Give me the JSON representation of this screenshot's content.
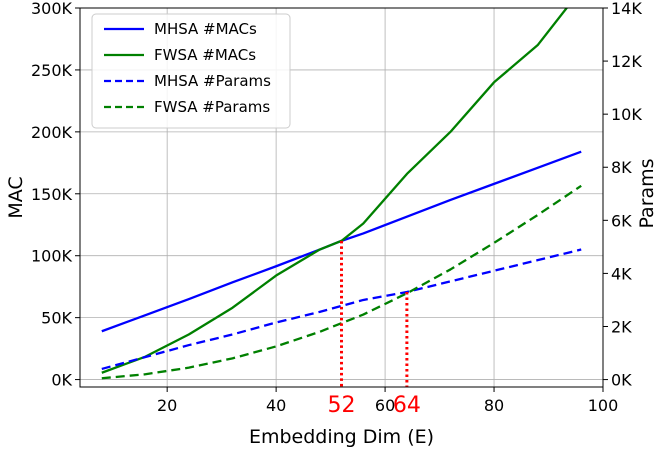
{
  "chart_data": {
    "type": "line",
    "xlabel": "Embedding Dim (E)",
    "ylabel": "MAC",
    "y2label": "Params",
    "xlim": [
      4,
      100
    ],
    "ylim": [
      -6000,
      300000
    ],
    "y2lim": [
      -280,
      14000
    ],
    "x_ticks": [
      20,
      40,
      60,
      80,
      100
    ],
    "y_ticks": [
      0,
      50000,
      100000,
      150000,
      200000,
      250000,
      300000
    ],
    "y_tick_labels": [
      "0K",
      "50K",
      "100K",
      "150K",
      "200K",
      "250K",
      "300K"
    ],
    "y2_ticks": [
      0,
      2000,
      4000,
      6000,
      8000,
      10000,
      12000,
      14000
    ],
    "y2_tick_labels": [
      "0K",
      "2K",
      "4K",
      "6K",
      "8K",
      "10K",
      "12K",
      "14K"
    ],
    "grid": true,
    "legend_position": "top-left",
    "series": [
      {
        "name": "MHSA #MACs",
        "axis": "left",
        "color": "#0000ff",
        "dash": "solid",
        "x": [
          8,
          16,
          24,
          32,
          40,
          48,
          52,
          56,
          64,
          72,
          80,
          88,
          96
        ],
        "y": [
          39000,
          52000,
          65000,
          78500,
          91500,
          105000,
          112000,
          118000,
          131500,
          145000,
          158000,
          171000,
          184000
        ]
      },
      {
        "name": "FWSA #MACs",
        "axis": "left",
        "color": "#008000",
        "dash": "solid",
        "x": [
          8,
          16,
          24,
          32,
          40,
          48,
          52,
          56,
          64,
          72,
          80,
          88,
          96
        ],
        "y": [
          5500,
          18500,
          36500,
          58000,
          84000,
          105000,
          112000,
          126000,
          166000,
          200000,
          240000,
          270000,
          315000
        ]
      },
      {
        "name": "MHSA #Params",
        "axis": "right",
        "color": "#0000ff",
        "dash": "dashed",
        "x": [
          8,
          16,
          24,
          32,
          40,
          48,
          56,
          64,
          72,
          80,
          88,
          96
        ],
        "y": [
          400,
          850,
          1300,
          1700,
          2150,
          2550,
          3000,
          3300,
          3700,
          4100,
          4500,
          4900
        ]
      },
      {
        "name": "FWSA #Params",
        "axis": "right",
        "color": "#008000",
        "dash": "dashed",
        "x": [
          8,
          16,
          24,
          32,
          40,
          48,
          56,
          64,
          72,
          80,
          88,
          96
        ],
        "y": [
          50,
          200,
          450,
          800,
          1250,
          1800,
          2450,
          3250,
          4150,
          5150,
          6200,
          7300
        ]
      }
    ],
    "annotations": [
      {
        "label": "52",
        "x": 52,
        "y": 112000,
        "axis": "left",
        "color": "#ff0000"
      },
      {
        "label": "64",
        "x": 64,
        "y": 3300,
        "axis": "right",
        "color": "#ff0000"
      }
    ]
  }
}
